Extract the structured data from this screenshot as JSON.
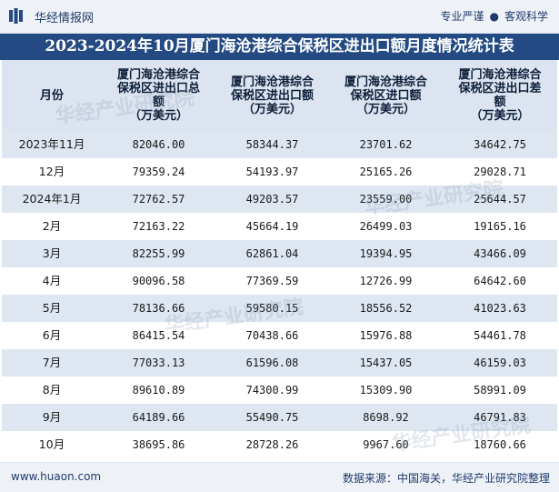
{
  "header": {
    "brand": "华经情报网",
    "slogan_left": "专业严谨",
    "slogan_dot": "●",
    "slogan_right": "客观科学"
  },
  "title": "2023-2024年10月厦门海沧港综合保税区进出口额月度情况统计表",
  "table": {
    "columns": [
      "月份",
      "厦门海沧港综合保税区进出口总额（万美元）",
      "厦门海沧港综合保税区进出口额（万美元）",
      "厦门海沧港综合保税区进口额（万美元）",
      "厦门海沧港综合保税区进出口差额（万美元）"
    ],
    "column_lines": [
      [
        "月份"
      ],
      [
        "厦门海沧港综合",
        "保税区进出口总",
        "额",
        "（万美元）"
      ],
      [
        "厦门海沧港综合",
        "保税区进出口额",
        "（万美元）"
      ],
      [
        "厦门海沧港综合",
        "保税区进口额",
        "（万美元）"
      ],
      [
        "厦门海沧港综合",
        "保税区进出口差",
        "额",
        "（万美元）"
      ]
    ],
    "rows": [
      [
        "2023年11月",
        "82046.00",
        "58344.37",
        "23701.62",
        "34642.75"
      ],
      [
        "12月",
        "79359.24",
        "54193.97",
        "25165.26",
        "29028.71"
      ],
      [
        "2024年1月",
        "72762.57",
        "49203.57",
        "23559.00",
        "25644.57"
      ],
      [
        "2月",
        "72163.22",
        "45664.19",
        "26499.03",
        "19165.16"
      ],
      [
        "3月",
        "82255.99",
        "62861.04",
        "19394.95",
        "43466.09"
      ],
      [
        "4月",
        "90096.58",
        "77369.59",
        "12726.99",
        "64642.60"
      ],
      [
        "5月",
        "78136.66",
        "59580.15",
        "18556.52",
        "41023.63"
      ],
      [
        "6月",
        "86415.54",
        "70438.66",
        "15976.88",
        "54461.78"
      ],
      [
        "7月",
        "77033.13",
        "61596.08",
        "15437.05",
        "46159.03"
      ],
      [
        "8月",
        "89610.89",
        "74300.99",
        "15309.90",
        "58991.09"
      ],
      [
        "9月",
        "64189.66",
        "55490.75",
        "8698.92",
        "46791.83"
      ],
      [
        "10月",
        "38695.86",
        "28728.26",
        "9967.60",
        "18760.66"
      ]
    ]
  },
  "footer": {
    "site": "www.huaon.com",
    "source": "数据来源：中国海关，华经产业研究院整理"
  },
  "watermark": "华经产业研究院",
  "colors": {
    "title_bg": "#234a82",
    "header_bg": "#dbe4f0",
    "stripe": "#dde6f1",
    "topbar_bg": "#eef2f7"
  }
}
